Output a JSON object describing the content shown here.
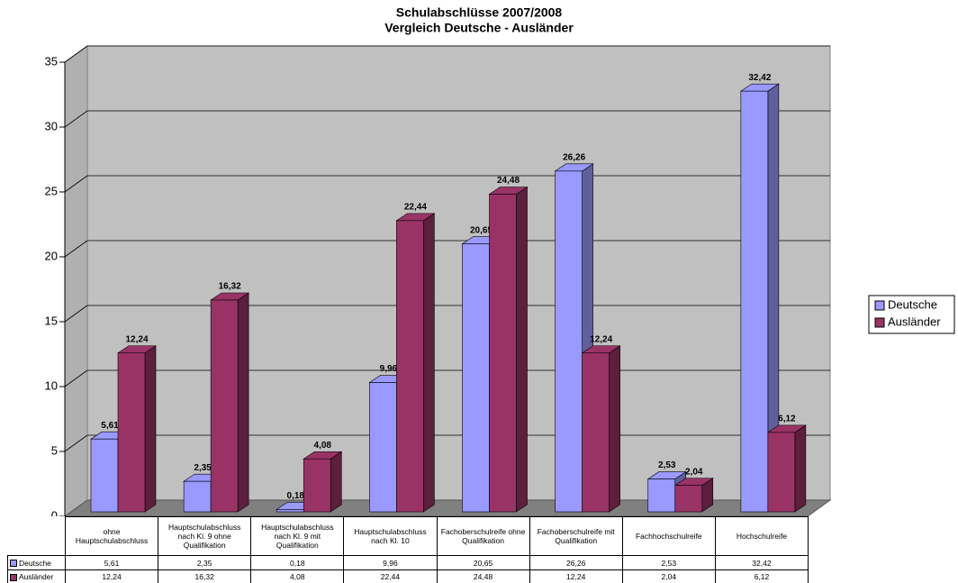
{
  "chart_data": {
    "type": "bar3d",
    "title": "Schulabschlüsse 2007/2008",
    "subtitle": "Vergleich Deutsche - Ausländer",
    "categories": [
      "ohne Hauptschulabschluss",
      "Hauptschulabschluss nach Kl. 9 ohne Qualifikation",
      "Hauptschulabschluss nach Kl. 9 mit Qualifikation",
      "Hauptschulabschluss nach Kl. 10",
      "Fachoberschulreife ohne Qualifikation",
      "Fachoberschulreife mit Qualifikation",
      "Fachhochschulreife",
      "Hochschulreife"
    ],
    "series": [
      {
        "name": "Deutsche",
        "color": "#9999ff",
        "side": "#5f5f9e",
        "values": [
          5.61,
          2.35,
          0.18,
          9.96,
          20.65,
          26.26,
          2.53,
          32.42
        ],
        "value_labels": [
          "5,61",
          "2,35",
          "0,18",
          "9,96",
          "20,65",
          "26,26",
          "2,53",
          "32,42"
        ]
      },
      {
        "name": "Ausländer",
        "color": "#993366",
        "side": "#5c1f3d",
        "values": [
          12.24,
          16.32,
          4.08,
          22.44,
          24.48,
          12.24,
          2.04,
          6.12
        ],
        "value_labels": [
          "12,24",
          "16,32",
          "4,08",
          "22,44",
          "24,48",
          "12,24",
          "2,04",
          "6,12"
        ]
      }
    ],
    "ylim": [
      0,
      35
    ],
    "yticks": [
      0,
      5,
      10,
      15,
      20,
      25,
      30,
      35
    ],
    "grid": true,
    "legend": "right",
    "data_table": true
  }
}
